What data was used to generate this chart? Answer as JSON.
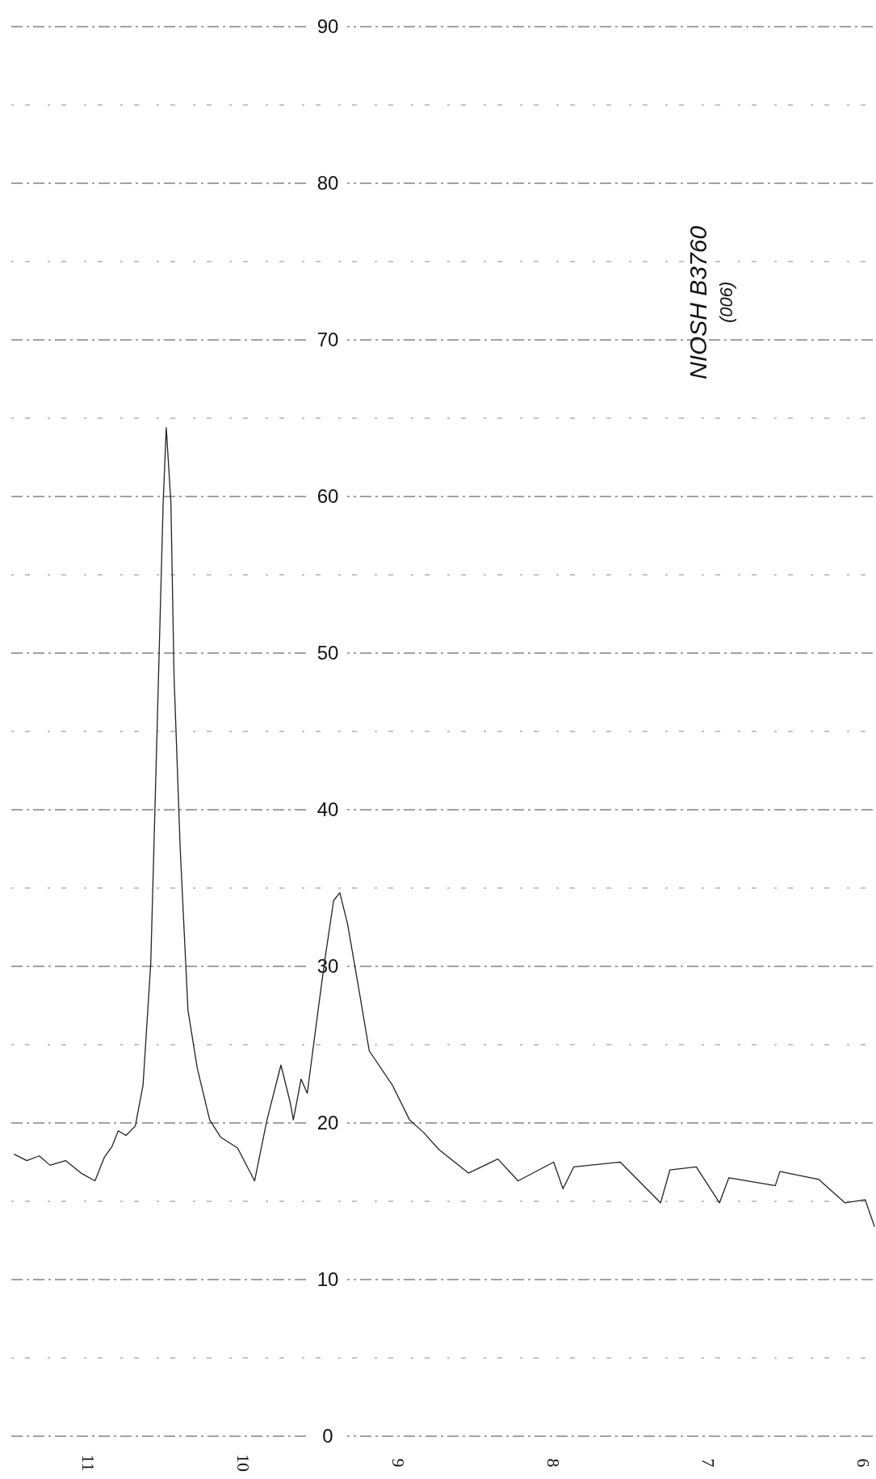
{
  "chart_data": {
    "type": "line",
    "annotations": [
      "NIOSH B3760",
      "(006)"
    ],
    "xlim": [
      11.5,
      5.92
    ],
    "xticks": [
      11,
      10,
      9,
      8,
      7,
      6
    ],
    "ylim": [
      0,
      90
    ],
    "yticks": [
      0,
      {
        "value": 5,
        "label": null
      },
      10,
      {
        "value": 15,
        "label": null
      },
      20,
      {
        "value": 25,
        "label": null
      },
      30,
      {
        "value": 35,
        "label": null
      },
      40,
      {
        "value": 45,
        "label": null
      },
      50,
      {
        "value": 55,
        "label": null
      },
      60,
      {
        "value": 65,
        "label": null
      },
      70,
      {
        "value": 75,
        "label": null
      },
      80,
      {
        "value": 85,
        "label": null
      },
      90
    ],
    "grid": "y",
    "line_style": "solid",
    "marker": "none",
    "series": [
      {
        "color": "#222222",
        "x": [
          11.48,
          11.4,
          11.32,
          11.25,
          11.15,
          11.05,
          10.96,
          10.9,
          10.85,
          10.81,
          10.76,
          10.7,
          10.65,
          10.6,
          10.56,
          10.52,
          10.5,
          10.47,
          10.45,
          10.41,
          10.36,
          10.3,
          10.22,
          10.15,
          10.04,
          9.93,
          9.85,
          9.76,
          9.7,
          9.68,
          9.63,
          9.59,
          9.54,
          9.48,
          9.42,
          9.38,
          9.33,
          9.26,
          9.19,
          9.04,
          8.93,
          8.84,
          8.74,
          8.55,
          8.36,
          8.23,
          8.0,
          7.94,
          7.87,
          7.57,
          7.31,
          7.25,
          7.08,
          6.93,
          6.87,
          6.57,
          6.54,
          6.29,
          6.12,
          5.99,
          5.93
        ],
        "values": [
          18.0,
          17.6,
          17.9,
          17.3,
          17.6,
          16.8,
          16.3,
          17.8,
          18.5,
          19.5,
          19.2,
          19.8,
          22.4,
          30.2,
          44.8,
          59.6,
          64.4,
          59.6,
          48.6,
          37.5,
          27.2,
          23.5,
          20.2,
          19.1,
          18.4,
          16.3,
          20.2,
          23.7,
          21.3,
          20.2,
          22.8,
          21.9,
          25.7,
          30.2,
          34.2,
          34.7,
          32.7,
          28.7,
          24.6,
          22.4,
          20.2,
          19.4,
          18.3,
          16.8,
          17.7,
          16.3,
          17.5,
          15.8,
          17.2,
          17.5,
          14.9,
          17.0,
          17.2,
          14.9,
          16.5,
          16.0,
          16.9,
          16.4,
          14.9,
          15.1,
          13.4
        ]
      }
    ]
  }
}
